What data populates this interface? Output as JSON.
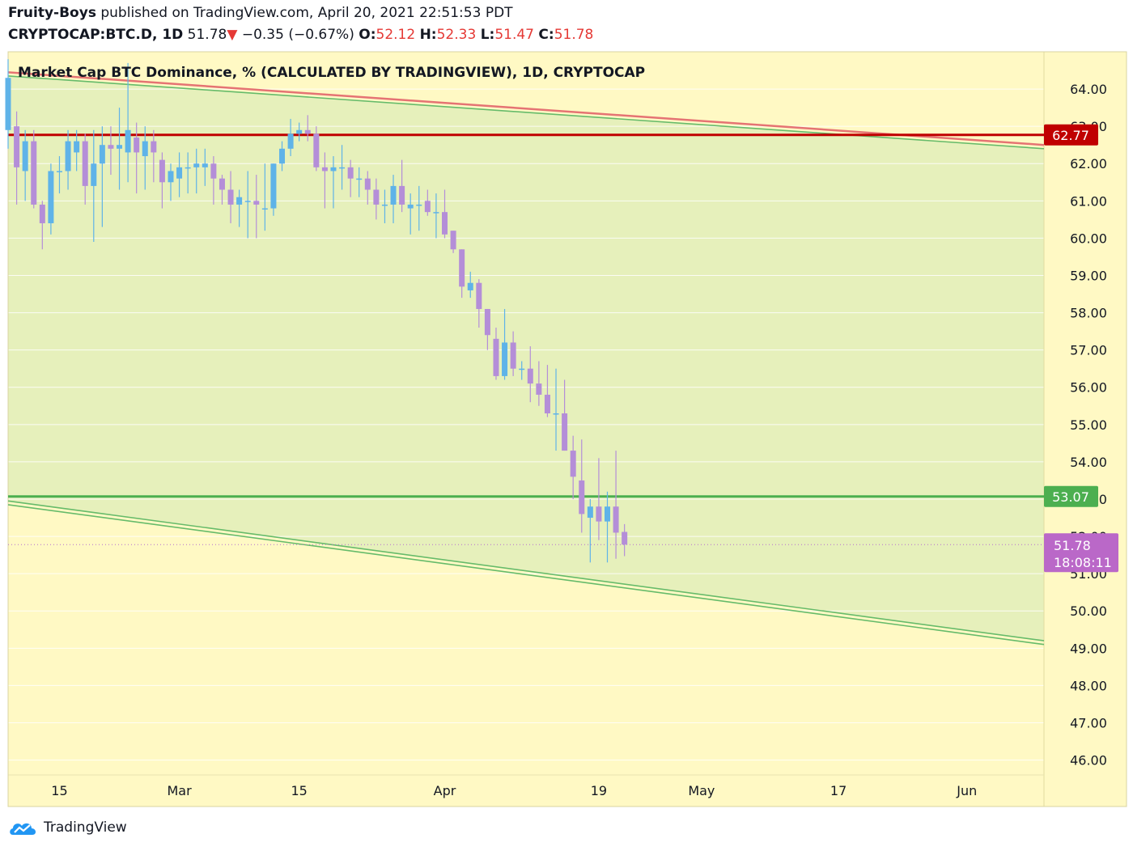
{
  "header": {
    "author": "Fruity-Boys",
    "published": "published on TradingView.com, April 20, 2021 22:51:53 PDT",
    "symbol": "CRYPTOCAP:BTC.D, 1D",
    "last": "51.78",
    "arrow": "▼",
    "change": "−0.35 (−0.67%)",
    "o_label": "O:",
    "o_value": "52.12",
    "h_label": "H:",
    "h_value": "52.33",
    "l_label": "L:",
    "l_value": "51.47",
    "c_label": "C:",
    "c_value": "51.78"
  },
  "footer": {
    "brand": "TradingView",
    "logo_icon": "tradingview-cloud-icon"
  },
  "colors": {
    "background": "#fff9c4",
    "channel_fill": "#e6f0bb",
    "up_candle": "#5fb3e8",
    "down_candle": "#b48ed8",
    "resistance_line": "#c00000",
    "support_line": "#4caf50",
    "trend_red": "#e57373",
    "trend_green": "#66bb6a",
    "last_price_badge": "#ba68c8"
  },
  "chart_data": {
    "type": "candlestick",
    "title": "Market Cap BTC Dominance, % (CALCULATED BY TRADINGVIEW), 1D, CRYPTOCAP",
    "ylim": [
      45.6,
      65.0
    ],
    "y_ticks": [
      "46.00",
      "47.00",
      "48.00",
      "49.00",
      "50.00",
      "51.00",
      "52.00",
      "53.00",
      "54.00",
      "55.00",
      "56.00",
      "57.00",
      "58.00",
      "59.00",
      "60.00",
      "61.00",
      "62.00",
      "63.00",
      "64.00"
    ],
    "x_ticks": [
      {
        "label": "15",
        "date": "2021-02-15"
      },
      {
        "label": "Mar",
        "date": "2021-03-01"
      },
      {
        "label": "15",
        "date": "2021-03-15"
      },
      {
        "label": "Apr",
        "date": "2021-04-01"
      },
      {
        "label": "19",
        "date": "2021-04-19"
      },
      {
        "label": "May",
        "date": "2021-05-01"
      },
      {
        "label": "17",
        "date": "2021-05-17"
      },
      {
        "label": "Jun",
        "date": "2021-06-01"
      }
    ],
    "x_range": [
      "2021-02-09",
      "2021-06-10"
    ],
    "horizontal_lines": [
      {
        "value": 62.77,
        "label": "62.77",
        "color": "#c00000"
      },
      {
        "value": 53.07,
        "label": "53.07",
        "color": "#4caf50"
      }
    ],
    "last_price": {
      "value": 51.78,
      "label": "51.78",
      "countdown": "18:08:11"
    },
    "trendlines": [
      {
        "color": "#e57373",
        "from": [
          "2021-02-09",
          64.45
        ],
        "to": [
          "2021-06-10",
          62.5
        ]
      },
      {
        "color": "#66bb6a",
        "from": [
          "2021-02-09",
          64.35
        ],
        "to": [
          "2021-06-10",
          62.4
        ]
      },
      {
        "color": "#66bb6a",
        "from": [
          "2021-02-09",
          52.95
        ],
        "to": [
          "2021-06-10",
          49.2
        ]
      },
      {
        "color": "#66bb6a",
        "from": [
          "2021-02-09",
          52.85
        ],
        "to": [
          "2021-06-10",
          49.1
        ]
      }
    ],
    "series": [
      {
        "date": "2021-02-09",
        "o": 62.9,
        "h": 64.8,
        "l": 62.4,
        "c": 64.3
      },
      {
        "date": "2021-02-10",
        "o": 63.0,
        "h": 63.4,
        "l": 60.9,
        "c": 61.9
      },
      {
        "date": "2021-02-11",
        "o": 61.8,
        "h": 62.9,
        "l": 61.0,
        "c": 62.6
      },
      {
        "date": "2021-02-12",
        "o": 62.6,
        "h": 62.9,
        "l": 60.8,
        "c": 60.9
      },
      {
        "date": "2021-02-13",
        "o": 60.9,
        "h": 61.0,
        "l": 59.7,
        "c": 60.4
      },
      {
        "date": "2021-02-14",
        "o": 60.4,
        "h": 62.0,
        "l": 60.1,
        "c": 61.8
      },
      {
        "date": "2021-02-15",
        "o": 61.8,
        "h": 62.2,
        "l": 61.2,
        "c": 61.8
      },
      {
        "date": "2021-02-16",
        "o": 61.8,
        "h": 62.9,
        "l": 61.3,
        "c": 62.6
      },
      {
        "date": "2021-02-17",
        "o": 62.3,
        "h": 62.9,
        "l": 61.8,
        "c": 62.6
      },
      {
        "date": "2021-02-18",
        "o": 62.6,
        "h": 62.8,
        "l": 60.9,
        "c": 61.4
      },
      {
        "date": "2021-02-19",
        "o": 61.4,
        "h": 62.9,
        "l": 59.9,
        "c": 62.0
      },
      {
        "date": "2021-02-20",
        "o": 62.0,
        "h": 63.0,
        "l": 60.3,
        "c": 62.5
      },
      {
        "date": "2021-02-21",
        "o": 62.5,
        "h": 63.0,
        "l": 61.7,
        "c": 62.4
      },
      {
        "date": "2021-02-22",
        "o": 62.4,
        "h": 63.5,
        "l": 61.3,
        "c": 62.5
      },
      {
        "date": "2021-02-23",
        "o": 62.3,
        "h": 64.7,
        "l": 61.5,
        "c": 62.9
      },
      {
        "date": "2021-02-24",
        "o": 62.7,
        "h": 63.1,
        "l": 61.2,
        "c": 62.3
      },
      {
        "date": "2021-02-25",
        "o": 62.2,
        "h": 63.0,
        "l": 61.3,
        "c": 62.6
      },
      {
        "date": "2021-02-26",
        "o": 62.6,
        "h": 62.9,
        "l": 61.5,
        "c": 62.3
      },
      {
        "date": "2021-02-27",
        "o": 62.1,
        "h": 62.3,
        "l": 60.8,
        "c": 61.5
      },
      {
        "date": "2021-02-28",
        "o": 61.5,
        "h": 62.0,
        "l": 61.0,
        "c": 61.8
      },
      {
        "date": "2021-03-01",
        "o": 61.6,
        "h": 62.3,
        "l": 61.1,
        "c": 61.9
      },
      {
        "date": "2021-03-02",
        "o": 61.9,
        "h": 62.3,
        "l": 61.2,
        "c": 61.9
      },
      {
        "date": "2021-03-03",
        "o": 61.9,
        "h": 62.4,
        "l": 61.2,
        "c": 62.0
      },
      {
        "date": "2021-03-04",
        "o": 61.9,
        "h": 62.4,
        "l": 61.4,
        "c": 62.0
      },
      {
        "date": "2021-03-05",
        "o": 62.0,
        "h": 62.2,
        "l": 60.9,
        "c": 61.6
      },
      {
        "date": "2021-03-06",
        "o": 61.6,
        "h": 61.7,
        "l": 60.9,
        "c": 61.3
      },
      {
        "date": "2021-03-07",
        "o": 61.3,
        "h": 61.8,
        "l": 60.4,
        "c": 60.9
      },
      {
        "date": "2021-03-08",
        "o": 60.9,
        "h": 61.3,
        "l": 60.3,
        "c": 61.1
      },
      {
        "date": "2021-03-09",
        "o": 61.0,
        "h": 61.8,
        "l": 60.0,
        "c": 61.0
      },
      {
        "date": "2021-03-10",
        "o": 61.0,
        "h": 61.7,
        "l": 60.0,
        "c": 60.9
      },
      {
        "date": "2021-03-11",
        "o": 60.8,
        "h": 62.0,
        "l": 60.2,
        "c": 60.8
      },
      {
        "date": "2021-03-12",
        "o": 60.8,
        "h": 62.0,
        "l": 60.6,
        "c": 62.0
      },
      {
        "date": "2021-03-13",
        "o": 62.0,
        "h": 62.6,
        "l": 61.8,
        "c": 62.4
      },
      {
        "date": "2021-03-14",
        "o": 62.4,
        "h": 63.2,
        "l": 62.2,
        "c": 62.8
      },
      {
        "date": "2021-03-15",
        "o": 62.8,
        "h": 63.1,
        "l": 62.6,
        "c": 62.9
      },
      {
        "date": "2021-03-16",
        "o": 62.9,
        "h": 63.3,
        "l": 62.6,
        "c": 62.8
      },
      {
        "date": "2021-03-17",
        "o": 62.8,
        "h": 63.0,
        "l": 61.8,
        "c": 61.9
      },
      {
        "date": "2021-03-18",
        "o": 61.9,
        "h": 62.3,
        "l": 60.8,
        "c": 61.8
      },
      {
        "date": "2021-03-19",
        "o": 61.8,
        "h": 62.2,
        "l": 60.8,
        "c": 61.9
      },
      {
        "date": "2021-03-20",
        "o": 61.9,
        "h": 62.5,
        "l": 61.3,
        "c": 61.9
      },
      {
        "date": "2021-03-21",
        "o": 61.9,
        "h": 62.1,
        "l": 61.1,
        "c": 61.6
      },
      {
        "date": "2021-03-22",
        "o": 61.6,
        "h": 61.9,
        "l": 61.1,
        "c": 61.6
      },
      {
        "date": "2021-03-23",
        "o": 61.6,
        "h": 61.8,
        "l": 60.9,
        "c": 61.3
      },
      {
        "date": "2021-03-24",
        "o": 61.3,
        "h": 61.6,
        "l": 60.5,
        "c": 60.9
      },
      {
        "date": "2021-03-25",
        "o": 60.9,
        "h": 61.3,
        "l": 60.4,
        "c": 60.9
      },
      {
        "date": "2021-03-26",
        "o": 60.9,
        "h": 61.7,
        "l": 60.4,
        "c": 61.4
      },
      {
        "date": "2021-03-27",
        "o": 61.4,
        "h": 62.1,
        "l": 60.7,
        "c": 60.9
      },
      {
        "date": "2021-03-28",
        "o": 60.8,
        "h": 61.2,
        "l": 60.1,
        "c": 60.9
      },
      {
        "date": "2021-03-29",
        "o": 60.9,
        "h": 61.4,
        "l": 60.2,
        "c": 60.9
      },
      {
        "date": "2021-03-30",
        "o": 61.0,
        "h": 61.3,
        "l": 60.6,
        "c": 60.7
      },
      {
        "date": "2021-03-31",
        "o": 60.7,
        "h": 61.2,
        "l": 60.0,
        "c": 60.7
      },
      {
        "date": "2021-04-01",
        "o": 60.7,
        "h": 61.3,
        "l": 60.0,
        "c": 60.1
      },
      {
        "date": "2021-04-02",
        "o": 60.2,
        "h": 60.2,
        "l": 59.6,
        "c": 59.7
      },
      {
        "date": "2021-04-03",
        "o": 59.7,
        "h": 59.7,
        "l": 58.4,
        "c": 58.7
      },
      {
        "date": "2021-04-04",
        "o": 58.6,
        "h": 59.1,
        "l": 58.4,
        "c": 58.8
      },
      {
        "date": "2021-04-05",
        "o": 58.8,
        "h": 58.9,
        "l": 57.6,
        "c": 58.1
      },
      {
        "date": "2021-04-06",
        "o": 58.1,
        "h": 58.1,
        "l": 57.0,
        "c": 57.4
      },
      {
        "date": "2021-04-07",
        "o": 57.3,
        "h": 57.6,
        "l": 56.2,
        "c": 56.3
      },
      {
        "date": "2021-04-08",
        "o": 56.3,
        "h": 58.1,
        "l": 56.2,
        "c": 57.2
      },
      {
        "date": "2021-04-09",
        "o": 57.2,
        "h": 57.5,
        "l": 56.3,
        "c": 56.5
      },
      {
        "date": "2021-04-10",
        "o": 56.5,
        "h": 56.7,
        "l": 56.2,
        "c": 56.5
      },
      {
        "date": "2021-04-11",
        "o": 56.5,
        "h": 57.1,
        "l": 55.6,
        "c": 56.1
      },
      {
        "date": "2021-04-12",
        "o": 56.1,
        "h": 56.7,
        "l": 55.5,
        "c": 55.8
      },
      {
        "date": "2021-04-13",
        "o": 55.8,
        "h": 56.6,
        "l": 55.2,
        "c": 55.3
      },
      {
        "date": "2021-04-14",
        "o": 55.3,
        "h": 56.5,
        "l": 54.3,
        "c": 55.3
      },
      {
        "date": "2021-04-15",
        "o": 55.3,
        "h": 56.2,
        "l": 54.3,
        "c": 54.3
      },
      {
        "date": "2021-04-16",
        "o": 54.3,
        "h": 54.7,
        "l": 53.0,
        "c": 53.6
      },
      {
        "date": "2021-04-17",
        "o": 53.5,
        "h": 54.6,
        "l": 52.1,
        "c": 52.6
      },
      {
        "date": "2021-04-18",
        "o": 52.5,
        "h": 53.0,
        "l": 51.3,
        "c": 52.8
      },
      {
        "date": "2021-04-19",
        "o": 52.8,
        "h": 54.1,
        "l": 51.9,
        "c": 52.4
      },
      {
        "date": "2021-04-20",
        "o": 52.4,
        "h": 53.2,
        "l": 51.3,
        "c": 52.8
      },
      {
        "date": "2021-04-21",
        "o": 52.8,
        "h": 54.3,
        "l": 51.4,
        "c": 52.1
      },
      {
        "date": "2021-04-22",
        "o": 52.12,
        "h": 52.33,
        "l": 51.47,
        "c": 51.78
      }
    ]
  }
}
